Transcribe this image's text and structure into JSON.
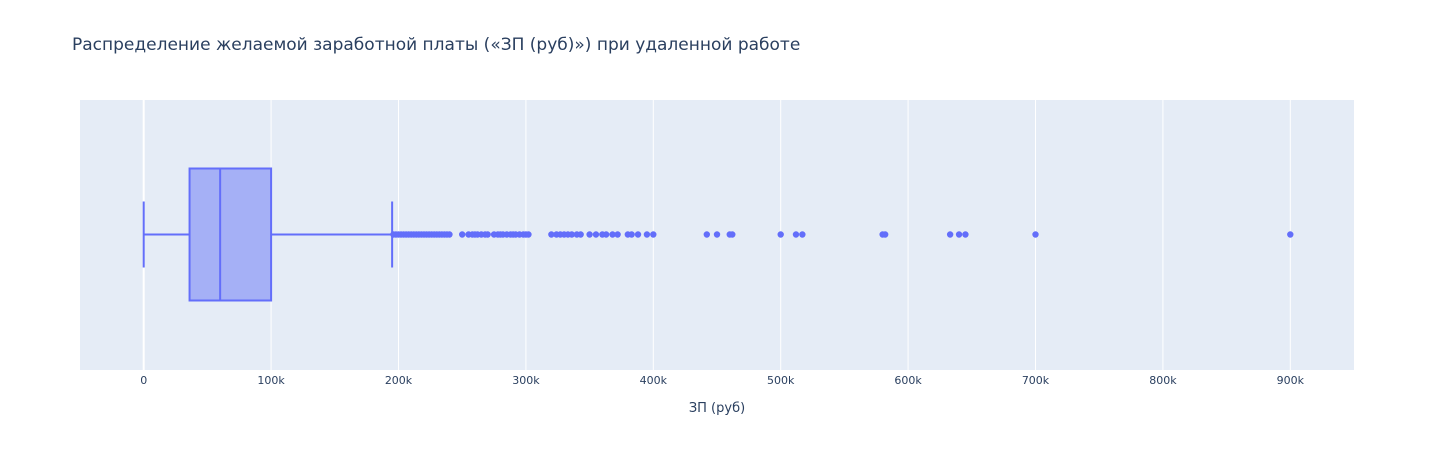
{
  "chart_data": {
    "type": "box",
    "title": "Распределение желаемой заработной платы («ЗП (руб)») при удаленной работе",
    "xlabel": "ЗП (руб)",
    "ylabel": "",
    "orientation": "horizontal",
    "xlim": [
      -50000,
      950000
    ],
    "x_ticks": [
      0,
      100000,
      200000,
      300000,
      400000,
      500000,
      600000,
      700000,
      800000,
      900000
    ],
    "x_tick_labels": [
      "0",
      "100k",
      "200k",
      "300k",
      "400k",
      "500k",
      "600k",
      "700k",
      "800k",
      "900k"
    ],
    "grid": true,
    "colors": {
      "plot_bg": "#e5ecf6",
      "grid": "#ffffff",
      "box_fill": "#a5b0f6",
      "box_line": "#636efa",
      "text": "#2a3f5f"
    },
    "box": {
      "lower_fence": 0,
      "q1": 36000,
      "median": 60000,
      "q3": 100000,
      "upper_fence": 195000
    },
    "outliers": [
      196000,
      198000,
      200000,
      202000,
      204000,
      206000,
      208000,
      210000,
      212000,
      214000,
      216000,
      218000,
      220000,
      222000,
      224000,
      226000,
      228000,
      230000,
      232000,
      234000,
      236000,
      238000,
      240000,
      250000,
      255000,
      258000,
      260000,
      262000,
      265000,
      268000,
      270000,
      275000,
      278000,
      280000,
      282000,
      285000,
      288000,
      290000,
      292000,
      295000,
      298000,
      300000,
      302000,
      320000,
      324000,
      327000,
      330000,
      333000,
      336000,
      340000,
      343000,
      350000,
      355000,
      360000,
      363000,
      368000,
      372000,
      380000,
      383000,
      388000,
      395000,
      400000,
      442000,
      450000,
      460000,
      462000,
      500000,
      512000,
      517000,
      580000,
      582000,
      633000,
      640000,
      645000,
      700000,
      900000
    ]
  }
}
